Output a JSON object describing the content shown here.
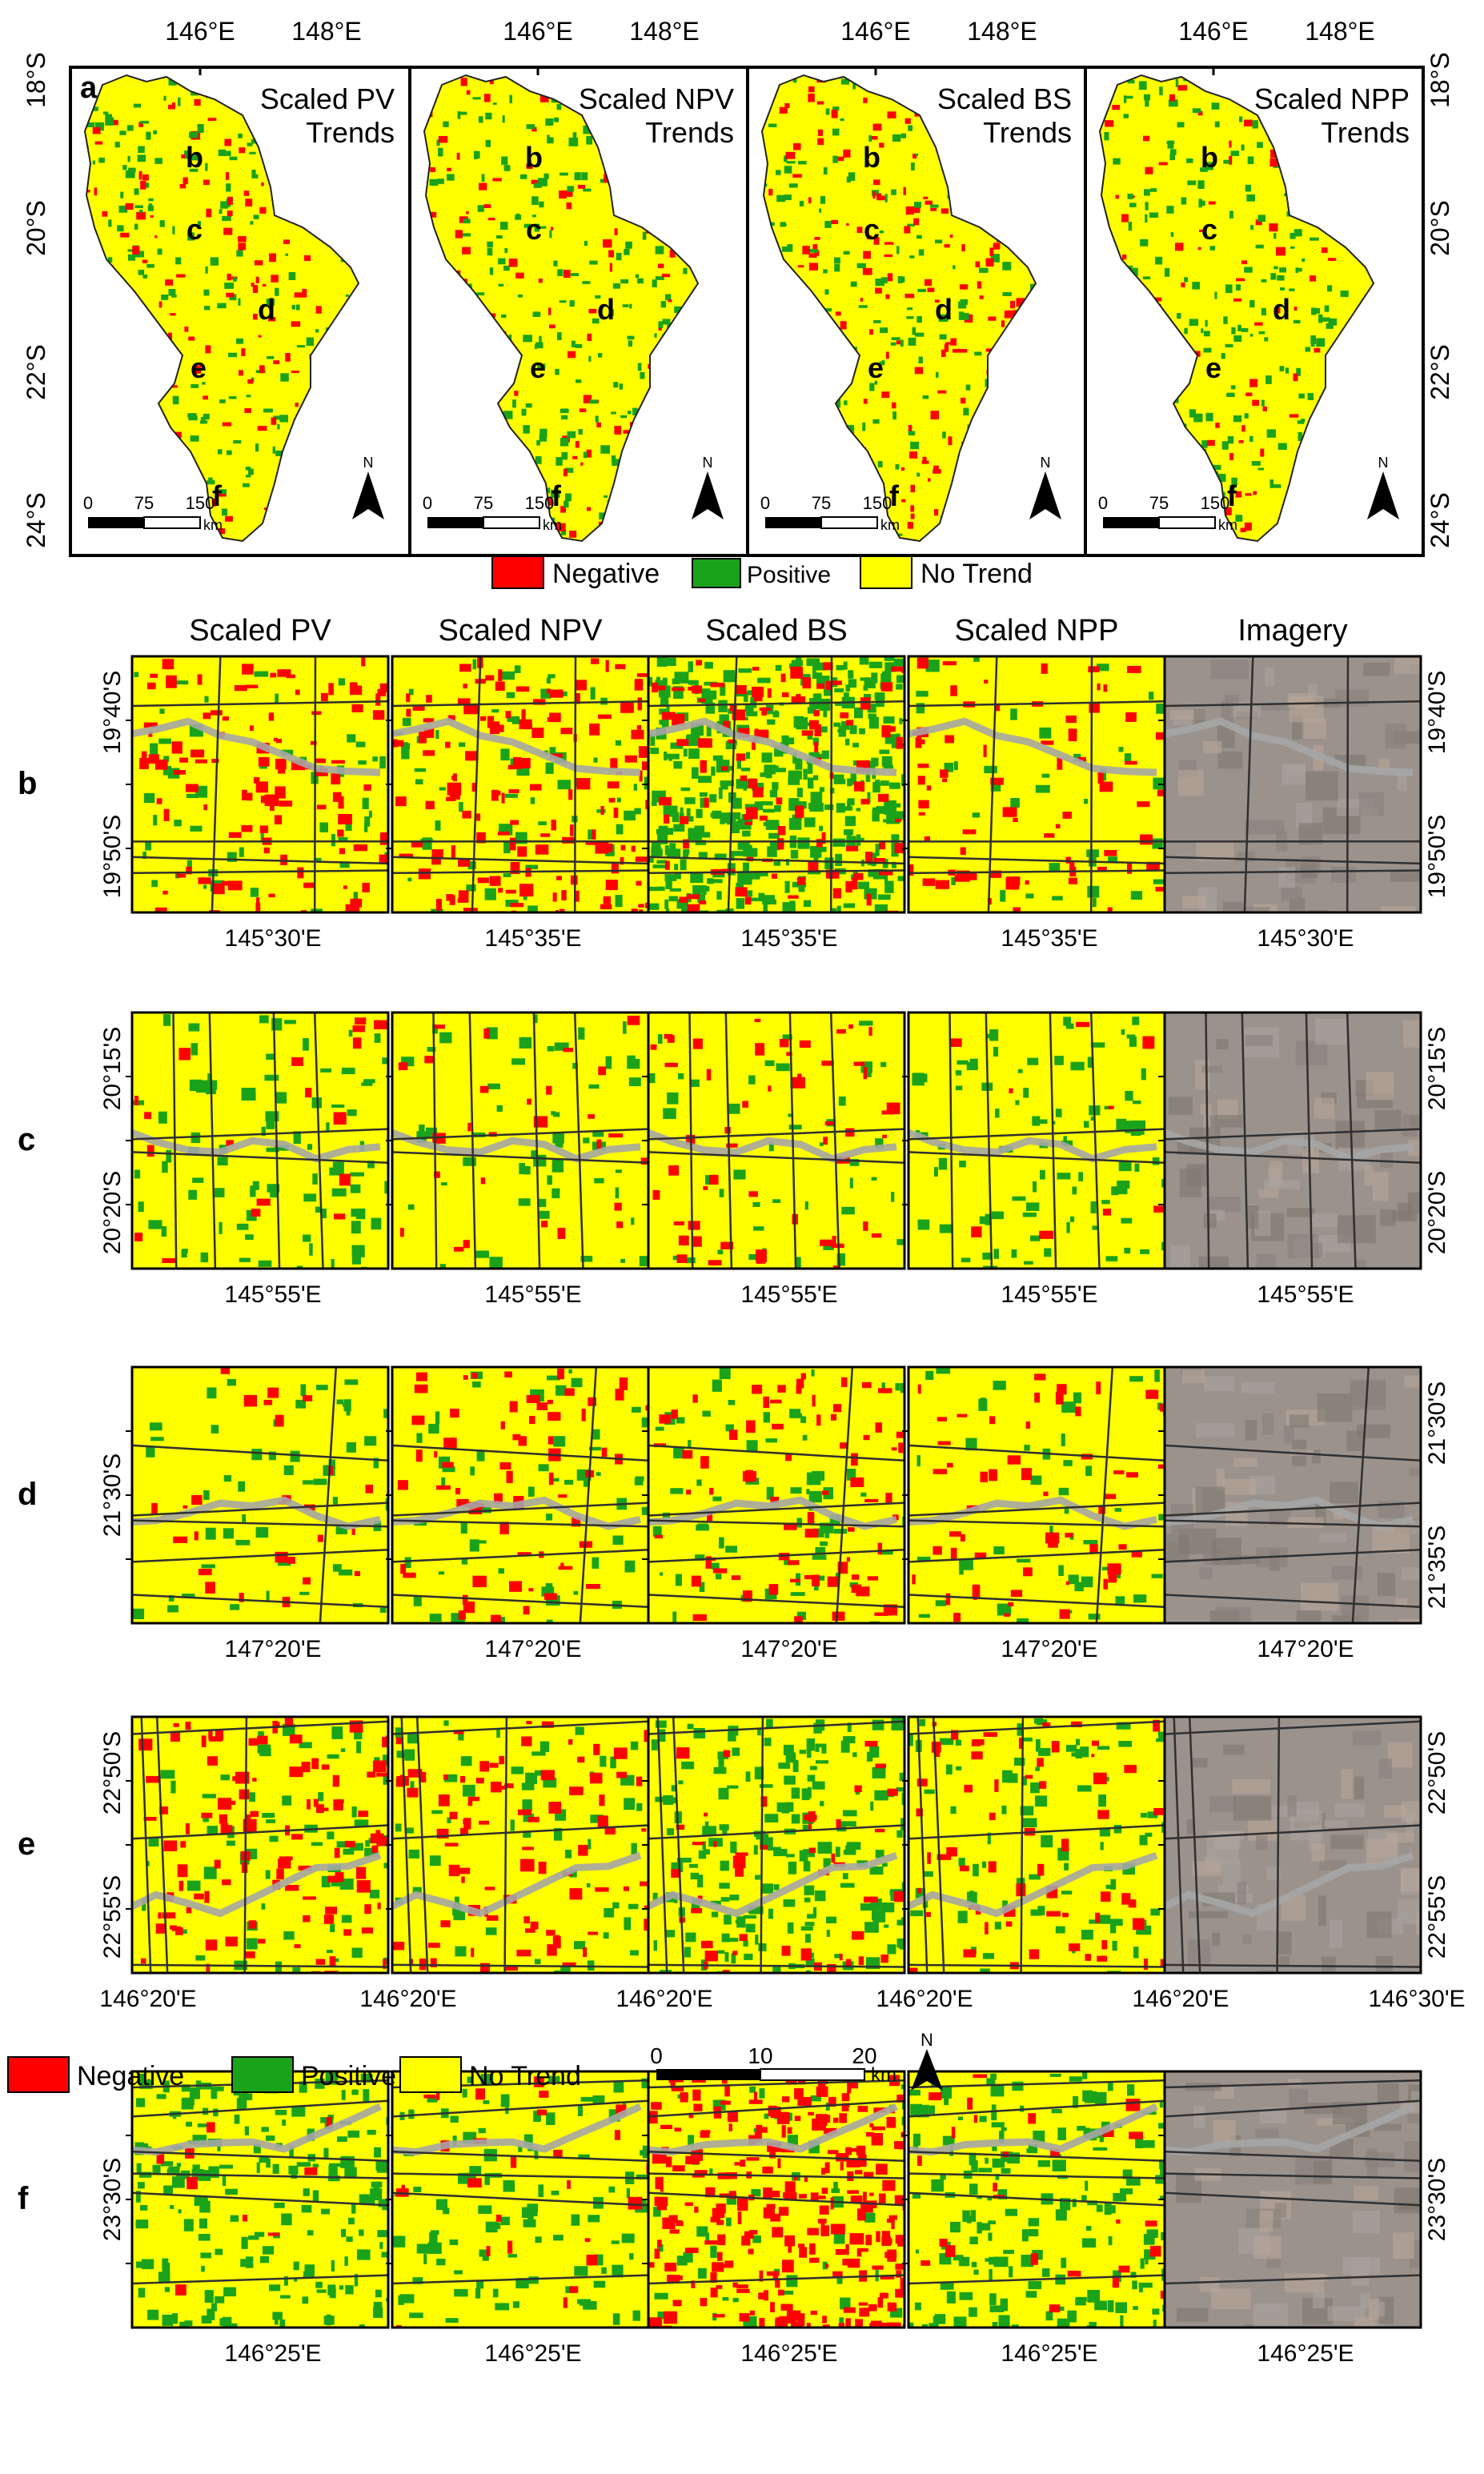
{
  "legend_colors": {
    "negative": "#ff0000",
    "positive": "#1aa31a",
    "no_trend": "#ffff00"
  },
  "colors": {
    "river": "#a6a6a6",
    "road": "#303030",
    "imagery": "#9b928c"
  },
  "top": {
    "panel_letter": "a",
    "panels": [
      {
        "title_line1": "Scaled PV",
        "title_line2": "Trends"
      },
      {
        "title_line1": "Scaled NPV",
        "title_line2": "Trends"
      },
      {
        "title_line1": "Scaled BS",
        "title_line2": "Trends"
      },
      {
        "title_line1": "Scaled NPP",
        "title_line2": "Trends"
      }
    ],
    "top_axis_labels": [
      "146°E",
      "148°E"
    ],
    "left_axis_labels": [
      "18°S",
      "20°S",
      "22°S",
      "24°S"
    ],
    "right_axis_labels": [
      "18°S",
      "20°S",
      "22°S",
      "24°S"
    ],
    "site_letters": [
      "b",
      "c",
      "d",
      "e",
      "f"
    ],
    "scalebar": {
      "ticks": [
        "0",
        "75",
        "150"
      ],
      "unit": "km"
    },
    "north_label": "N",
    "legend": {
      "negative": "Negative",
      "positive": "Positive",
      "no_trend": "No Trend"
    }
  },
  "column_headers": [
    "Scaled PV",
    "Scaled NPV",
    "Scaled BS",
    "Scaled NPP",
    "Imagery"
  ],
  "rows": [
    {
      "letter": "b",
      "left_labels": [
        "19°40'S",
        "19°50'S"
      ],
      "right_labels": [
        "19°40'S",
        "19°50'S"
      ],
      "bottom_labels": [
        "145°30'E",
        "145°35'E",
        "145°35'E",
        "145°35'E",
        "145°30'E"
      ]
    },
    {
      "letter": "c",
      "left_labels": [
        "20°15'S",
        "20°20'S"
      ],
      "right_labels": [
        "20°15'S",
        "20°20'S"
      ],
      "bottom_labels": [
        "145°55'E",
        "145°55'E",
        "145°55'E",
        "145°55'E",
        "145°55'E"
      ]
    },
    {
      "letter": "d",
      "left_labels": [
        "21°30'S"
      ],
      "right_labels": [
        "21°30'S",
        "21°35'S"
      ],
      "bottom_labels": [
        "147°20'E",
        "147°20'E",
        "147°20'E",
        "147°20'E",
        "147°20'E"
      ]
    },
    {
      "letter": "e",
      "left_labels": [
        "22°50'S",
        "22°55'S"
      ],
      "right_labels": [
        "22°50'S",
        "22°55'S"
      ],
      "bottom_labels": [
        "146°20'E",
        "146°20'E",
        "146°20'E",
        "146°20'E",
        "146°20'E",
        "146°30'E"
      ]
    },
    {
      "letter": "f",
      "left_labels": [
        "23°30'S"
      ],
      "right_labels": [
        "23°30'S"
      ],
      "bottom_labels": [
        "146°25'E",
        "146°25'E",
        "146°25'E",
        "146°25'E",
        "146°25'E"
      ]
    }
  ],
  "bottom_legend": {
    "negative": "Negative",
    "positive": "Positive",
    "no_trend": "No Trend"
  },
  "bottom_scalebar": {
    "ticks": [
      "0",
      "10",
      "20"
    ],
    "unit": "km"
  },
  "bottom_north_label": "N"
}
